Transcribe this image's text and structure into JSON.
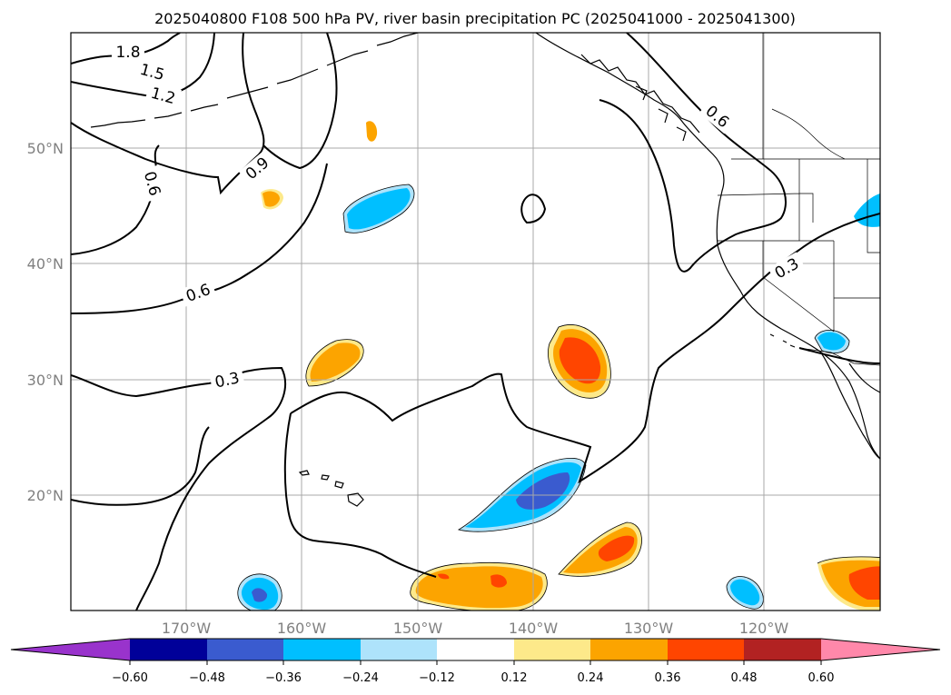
{
  "figure": {
    "title": "2025040800 F108 500 hPa PV, river basin precipitation PC (2025041000 - 2025041300)"
  },
  "map": {
    "lat_labels": [
      "50°N",
      "40°N",
      "30°N",
      "20°N"
    ],
    "lon_labels": [
      "170°W",
      "160°W",
      "150°W",
      "140°W",
      "130°W",
      "120°W"
    ],
    "contour_labels": [
      "1.8",
      "1.5",
      "1.2",
      "0.9",
      "0.6",
      "0.6",
      "0.3",
      "0.6",
      "0.3"
    ]
  },
  "colorbar": {
    "tick_labels": [
      "−0.60",
      "−0.48",
      "−0.36",
      "−0.24",
      "−0.12",
      "0.12",
      "0.24",
      "0.36",
      "0.48",
      "0.60"
    ],
    "colors": {
      "under": "#9933cc",
      "bins": [
        "#000099",
        "#3a5bcf",
        "#00bfff",
        "#aee3fb",
        "#ffffff",
        "#fde98a",
        "#fca400",
        "#ff4500",
        "#b22222"
      ],
      "over": "#ff88aa"
    }
  }
}
